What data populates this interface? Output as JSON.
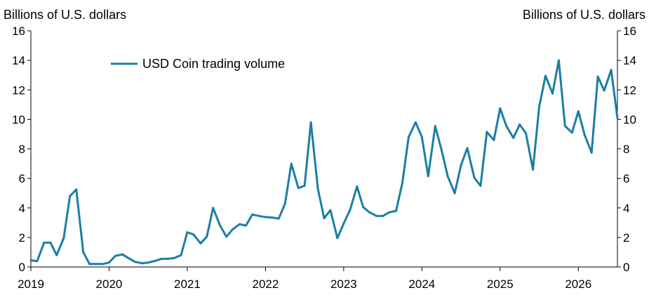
{
  "chart_data": {
    "type": "line",
    "ylabel_left": "Billions of U.S. dollars",
    "ylabel_right": "Billions of U.S. dollars",
    "ylim": [
      0,
      16
    ],
    "yticks": [
      "0",
      "2",
      "4",
      "6",
      "8",
      "10",
      "12",
      "14",
      "16"
    ],
    "xlim": [
      2019.0,
      2026.5
    ],
    "xticks": [
      "2019",
      "2020",
      "2021",
      "2022",
      "2023",
      "2024",
      "2025",
      "2026"
    ],
    "grid": false,
    "legend_position": "top-left",
    "series": [
      {
        "name": "USD Coin trading volume",
        "color": "#1b7fa3",
        "points": [
          [
            2019.0,
            0.45
          ],
          [
            2019.08,
            0.4
          ],
          [
            2019.17,
            1.65
          ],
          [
            2019.25,
            1.65
          ],
          [
            2019.33,
            0.8
          ],
          [
            2019.42,
            1.95
          ],
          [
            2019.5,
            4.8
          ],
          [
            2019.58,
            5.25
          ],
          [
            2019.67,
            1.0
          ],
          [
            2019.75,
            0.2
          ],
          [
            2019.83,
            0.2
          ],
          [
            2019.92,
            0.2
          ],
          [
            2020.0,
            0.3
          ],
          [
            2020.08,
            0.75
          ],
          [
            2020.17,
            0.85
          ],
          [
            2020.25,
            0.6
          ],
          [
            2020.33,
            0.35
          ],
          [
            2020.42,
            0.25
          ],
          [
            2020.5,
            0.3
          ],
          [
            2020.58,
            0.4
          ],
          [
            2020.67,
            0.55
          ],
          [
            2020.75,
            0.55
          ],
          [
            2020.83,
            0.6
          ],
          [
            2020.92,
            0.8
          ],
          [
            2021.0,
            2.35
          ],
          [
            2021.08,
            2.2
          ],
          [
            2021.17,
            1.6
          ],
          [
            2021.25,
            2.05
          ],
          [
            2021.33,
            4.0
          ],
          [
            2021.42,
            2.8
          ],
          [
            2021.5,
            2.05
          ],
          [
            2021.58,
            2.55
          ],
          [
            2021.67,
            2.9
          ],
          [
            2021.75,
            2.8
          ],
          [
            2021.83,
            3.55
          ],
          [
            2021.92,
            3.45
          ],
          [
            2022.0,
            3.38
          ],
          [
            2022.08,
            3.35
          ],
          [
            2022.17,
            3.28
          ],
          [
            2022.25,
            4.3
          ],
          [
            2022.33,
            7.0
          ],
          [
            2022.42,
            5.35
          ],
          [
            2022.5,
            5.5
          ],
          [
            2022.58,
            9.8
          ],
          [
            2022.67,
            5.3
          ],
          [
            2022.75,
            3.3
          ],
          [
            2022.83,
            3.85
          ],
          [
            2022.92,
            1.95
          ],
          [
            2023.0,
            2.95
          ],
          [
            2023.08,
            3.85
          ],
          [
            2023.17,
            5.45
          ],
          [
            2023.25,
            4.05
          ],
          [
            2023.33,
            3.7
          ],
          [
            2023.42,
            3.45
          ],
          [
            2023.5,
            3.45
          ],
          [
            2023.58,
            3.7
          ],
          [
            2023.67,
            3.8
          ],
          [
            2023.75,
            5.7
          ],
          [
            2023.83,
            8.8
          ],
          [
            2023.92,
            9.8
          ],
          [
            2024.0,
            8.8
          ],
          [
            2024.08,
            6.15
          ],
          [
            2024.17,
            9.55
          ],
          [
            2024.25,
            7.95
          ],
          [
            2024.33,
            6.15
          ],
          [
            2024.42,
            5.0
          ],
          [
            2024.5,
            6.9
          ],
          [
            2024.58,
            8.05
          ],
          [
            2024.67,
            6.05
          ],
          [
            2024.75,
            5.5
          ],
          [
            2024.83,
            9.15
          ],
          [
            2024.92,
            8.6
          ],
          [
            2025.0,
            10.75
          ],
          [
            2025.08,
            9.55
          ],
          [
            2025.17,
            8.75
          ],
          [
            2025.25,
            9.65
          ],
          [
            2025.33,
            9.05
          ],
          [
            2025.42,
            6.6
          ],
          [
            2025.5,
            10.85
          ],
          [
            2025.58,
            12.95
          ],
          [
            2025.67,
            11.75
          ],
          [
            2025.75,
            14.0
          ],
          [
            2025.83,
            9.55
          ],
          [
            2025.92,
            9.1
          ],
          [
            2026.0,
            10.55
          ],
          [
            2026.08,
            8.95
          ],
          [
            2026.17,
            7.75
          ],
          [
            2026.25,
            12.9
          ],
          [
            2026.33,
            11.95
          ],
          [
            2026.42,
            13.35
          ],
          [
            2026.5,
            10.1
          ]
        ]
      }
    ]
  }
}
